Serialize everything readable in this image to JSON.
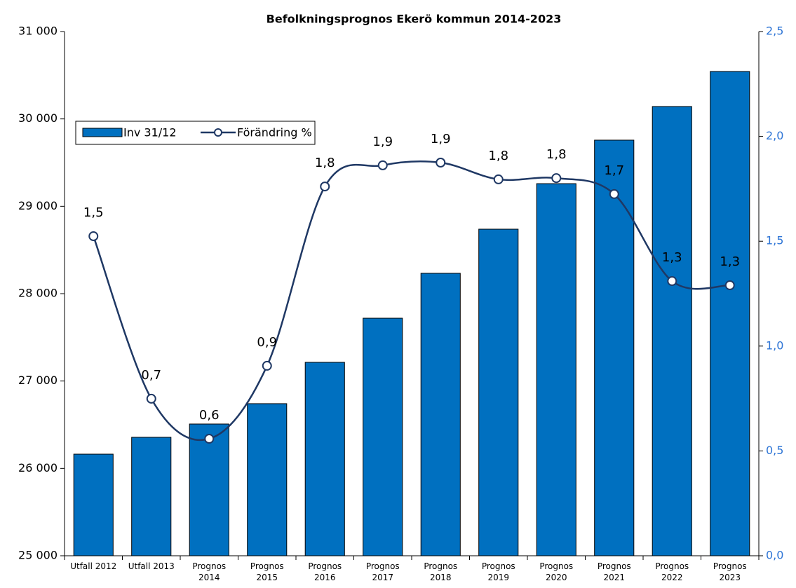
{
  "chart_data": {
    "type": "bar-line",
    "title": "Befolkningsprognos Ekerö kommun 2014-2023",
    "categories": [
      "Utfall 2012",
      "Utfall 2013",
      "Prognos\n2014",
      "Prognos\n2015",
      "Prognos\n2016",
      "Prognos\n2017",
      "Prognos\n2018",
      "Prognos\n2019",
      "Prognos\n2020",
      "Prognos\n2021",
      "Prognos\n2022",
      "Prognos\n2023"
    ],
    "series": [
      {
        "name": "Inv 31/12",
        "type": "bar",
        "color": "#0070c0",
        "values": [
          26163,
          26356,
          26508,
          26741,
          27214,
          27719,
          28233,
          28738,
          29259,
          29757,
          30142,
          30543
        ]
      },
      {
        "name": "Förändring %",
        "type": "line",
        "axis": "y2",
        "color": "#1f3864",
        "values": [
          1.524,
          0.749,
          0.558,
          0.906,
          1.761,
          1.862,
          1.875,
          1.795,
          1.801,
          1.725,
          1.31,
          1.29
        ],
        "value_labels": [
          "1,5",
          "0,7",
          "0,6",
          "0,9",
          "1,8",
          "1,9",
          "1,9",
          "1,8",
          "1,8",
          "1,7",
          "1,3",
          "1,3"
        ]
      }
    ],
    "ylim": [
      25000,
      31000
    ],
    "yticks": [
      {
        "value": 25000,
        "label": "25 000"
      },
      {
        "value": 26000,
        "label": "26 000"
      },
      {
        "value": 27000,
        "label": "27 000"
      },
      {
        "value": 28000,
        "label": "28 000"
      },
      {
        "value": 29000,
        "label": "29 000"
      },
      {
        "value": 30000,
        "label": "30 000"
      },
      {
        "value": 31000,
        "label": "31 000"
      }
    ],
    "y2lim": [
      0,
      2.5
    ],
    "y2ticks": [
      {
        "value": 0,
        "label": "0,0"
      },
      {
        "value": 0.5,
        "label": "0,5"
      },
      {
        "value": 1,
        "label": "1,0"
      },
      {
        "value": 1.5,
        "label": "1,5"
      },
      {
        "value": 2,
        "label": "2,0"
      },
      {
        "value": 2.5,
        "label": "2,5"
      }
    ],
    "y2color": "#2e75d6",
    "grid": false,
    "legend": "upper left"
  }
}
